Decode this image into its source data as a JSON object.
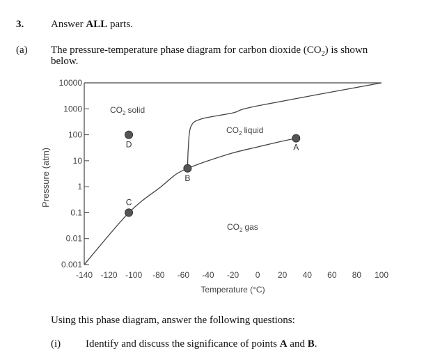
{
  "question": {
    "number": "3.",
    "instruction_prefix": "Answer ",
    "instruction_bold": "ALL",
    "instruction_suffix": " parts."
  },
  "part_a": {
    "label": "(a)",
    "text_line1_pre": "The pressure-temperature phase diagram for carbon dioxide (CO",
    "text_line1_sub": "2",
    "text_line1_post": ") is shown",
    "text_line2": "below."
  },
  "chart_data": {
    "type": "line",
    "xlabel": "Temperature (°C)",
    "ylabel": "Pressure (atm)",
    "x_ticks": [
      "-140",
      "-120",
      "-100",
      "-80",
      "-60",
      "-40",
      "-20",
      "0",
      "20",
      "40",
      "60",
      "80",
      "100"
    ],
    "y_ticks": [
      "0.001",
      "0.01",
      "0.1",
      "1",
      "10",
      "100",
      "1000",
      "10000"
    ],
    "xlim": [
      -140,
      100
    ],
    "ylim": [
      0.001,
      10000
    ],
    "yscale": "log",
    "region_labels": {
      "solid": "CO solid",
      "liquid": "CO liquid",
      "gas": "CO gas",
      "subscript": "2"
    },
    "series": [
      {
        "values": [
          [
            -140,
            0.001
          ],
          [
            -104,
            0.1
          ],
          [
            -78,
            1
          ],
          [
            -66,
            3
          ],
          [
            -56.6,
            5.1
          ]
        ]
      },
      {
        "values": [
          [
            -56.6,
            5.1
          ],
          [
            -40,
            10
          ],
          [
            -20,
            20
          ],
          [
            0,
            34
          ],
          [
            20,
            57
          ],
          [
            31,
            73
          ]
        ]
      },
      {
        "values": [
          [
            -56.6,
            5.1
          ],
          [
            -56,
            30
          ],
          [
            -54,
            200
          ],
          [
            -46,
            400
          ],
          [
            -20,
            700
          ],
          [
            0,
            1300
          ],
          [
            100,
            10000
          ]
        ]
      }
    ],
    "points": [
      {
        "label": "A",
        "x": 31,
        "y": 73
      },
      {
        "label": "B",
        "x": -56.6,
        "y": 5.1
      },
      {
        "label": "C",
        "x": -104,
        "y": 0.1
      },
      {
        "label": "D",
        "x": -104,
        "y": 100
      }
    ]
  },
  "footer": {
    "prompt": "Using this phase diagram, answer the following questions:",
    "sub_label": "(i)",
    "sub_text_pre": "Identify and discuss the significance of points ",
    "sub_text_A": "A",
    "sub_text_mid": " and ",
    "sub_text_B": "B",
    "sub_text_post": "."
  }
}
